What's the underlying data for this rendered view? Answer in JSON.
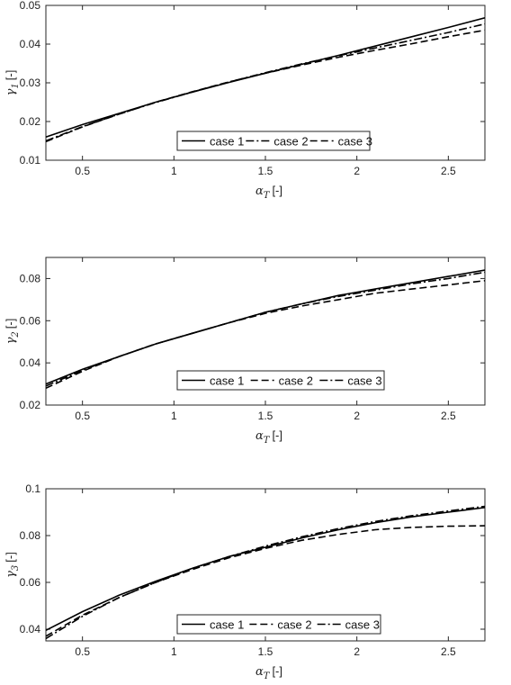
{
  "chart_data": [
    {
      "type": "line",
      "xlabel": {
        "symbol": "α",
        "sub": "T",
        "unit": "[-]"
      },
      "ylabel": {
        "symbol": "γ",
        "sub": "1",
        "unit": "[-]"
      },
      "xlim": [
        0.3,
        2.7
      ],
      "ylim": [
        0.01,
        0.05
      ],
      "xticks": [
        0.5,
        1,
        1.5,
        2,
        2.5
      ],
      "xtick_labels": [
        "0.5",
        "1",
        "1.5",
        "2",
        "2.5"
      ],
      "yticks": [
        0.01,
        0.02,
        0.03,
        0.04,
        0.05
      ],
      "ytick_labels": [
        "0.01",
        "0.02",
        "0.03",
        "0.04",
        "0.05"
      ],
      "grid": false,
      "legend": {
        "placement": "bottom-center",
        "entries": [
          "case 1",
          "case 2",
          "case 3"
        ]
      },
      "x": [
        0.3,
        0.5,
        0.7,
        0.9,
        1.1,
        1.3,
        1.5,
        1.7,
        1.9,
        2.1,
        2.3,
        2.5,
        2.7
      ],
      "series": [
        {
          "name": "case 1",
          "dash": "solid",
          "values": [
            0.016,
            0.0192,
            0.0221,
            0.025,
            0.0276,
            0.0301,
            0.0325,
            0.0348,
            0.0371,
            0.0395,
            0.0419,
            0.0443,
            0.0468
          ]
        },
        {
          "name": "case 2",
          "dash": "dashdot",
          "values": [
            0.015,
            0.0187,
            0.0219,
            0.0249,
            0.0276,
            0.0302,
            0.0326,
            0.0349,
            0.037,
            0.039,
            0.041,
            0.043,
            0.0452
          ]
        },
        {
          "name": "case 3",
          "dash": "dashed",
          "values": [
            0.0148,
            0.0186,
            0.0219,
            0.025,
            0.0277,
            0.0302,
            0.0325,
            0.0346,
            0.0366,
            0.0384,
            0.0401,
            0.0419,
            0.0436
          ]
        }
      ]
    },
    {
      "type": "line",
      "xlabel": {
        "symbol": "α",
        "sub": "T",
        "unit": "[-]"
      },
      "ylabel": {
        "symbol": "γ",
        "sub": "2",
        "unit": "[-]"
      },
      "xlim": [
        0.3,
        2.7
      ],
      "ylim": [
        0.02,
        0.09
      ],
      "xticks": [
        0.5,
        1,
        1.5,
        2,
        2.5
      ],
      "xtick_labels": [
        "0.5",
        "1",
        "1.5",
        "2",
        "2.5"
      ],
      "yticks": [
        0.02,
        0.04,
        0.06,
        0.08
      ],
      "ytick_labels": [
        "0.02",
        "0.04",
        "0.06",
        "0.08"
      ],
      "grid": false,
      "legend": {
        "placement": "bottom-center",
        "entries": [
          "case 1",
          "case 2",
          "case 3"
        ]
      },
      "x": [
        0.3,
        0.5,
        0.7,
        0.9,
        1.1,
        1.3,
        1.5,
        1.7,
        1.9,
        2.1,
        2.3,
        2.5,
        2.7
      ],
      "series": [
        {
          "name": "case 1",
          "dash": "solid",
          "values": [
            0.03,
            0.037,
            0.043,
            0.049,
            0.054,
            0.059,
            0.064,
            0.068,
            0.072,
            0.075,
            0.078,
            0.081,
            0.084
          ]
        },
        {
          "name": "case 2",
          "dash": "dashed",
          "values": [
            0.028,
            0.036,
            0.043,
            0.049,
            0.054,
            0.059,
            0.0635,
            0.067,
            0.07,
            0.073,
            0.075,
            0.077,
            0.079
          ]
        },
        {
          "name": "case 3",
          "dash": "dashdot",
          "values": [
            0.029,
            0.0365,
            0.043,
            0.049,
            0.054,
            0.059,
            0.064,
            0.068,
            0.0715,
            0.0745,
            0.0775,
            0.08,
            0.083
          ]
        }
      ]
    },
    {
      "type": "line",
      "xlabel": {
        "symbol": "α",
        "sub": "T",
        "unit": "[-]"
      },
      "ylabel": {
        "symbol": "γ",
        "sub": "3",
        "unit": "[-]"
      },
      "xlim": [
        0.3,
        2.7
      ],
      "ylim": [
        0.035,
        0.1
      ],
      "xticks": [
        0.5,
        1,
        1.5,
        2,
        2.5
      ],
      "xtick_labels": [
        "0.5",
        "1",
        "1.5",
        "2",
        "2.5"
      ],
      "yticks": [
        0.04,
        0.06,
        0.08,
        0.1
      ],
      "ytick_labels": [
        "0.04",
        "0.06",
        "0.08",
        "0.1"
      ],
      "grid": false,
      "legend": {
        "placement": "bottom-center",
        "entries": [
          "case 1",
          "case 2",
          "case 3"
        ]
      },
      "x": [
        0.3,
        0.5,
        0.7,
        0.9,
        1.1,
        1.3,
        1.5,
        1.7,
        1.9,
        2.1,
        2.3,
        2.5,
        2.7
      ],
      "series": [
        {
          "name": "case 1",
          "dash": "solid",
          "values": [
            0.0395,
            0.0475,
            0.0545,
            0.0605,
            0.066,
            0.071,
            0.075,
            0.079,
            0.0825,
            0.0855,
            0.088,
            0.09,
            0.092
          ]
        },
        {
          "name": "case 2",
          "dash": "dashed",
          "values": [
            0.037,
            0.046,
            0.0535,
            0.06,
            0.0655,
            0.0705,
            0.0745,
            0.078,
            0.0805,
            0.0825,
            0.0835,
            0.084,
            0.0842
          ]
        },
        {
          "name": "case 3",
          "dash": "dashdot",
          "values": [
            0.036,
            0.0455,
            0.0535,
            0.06,
            0.066,
            0.071,
            0.0755,
            0.0795,
            0.083,
            0.086,
            0.0885,
            0.0905,
            0.0925
          ]
        }
      ]
    }
  ]
}
